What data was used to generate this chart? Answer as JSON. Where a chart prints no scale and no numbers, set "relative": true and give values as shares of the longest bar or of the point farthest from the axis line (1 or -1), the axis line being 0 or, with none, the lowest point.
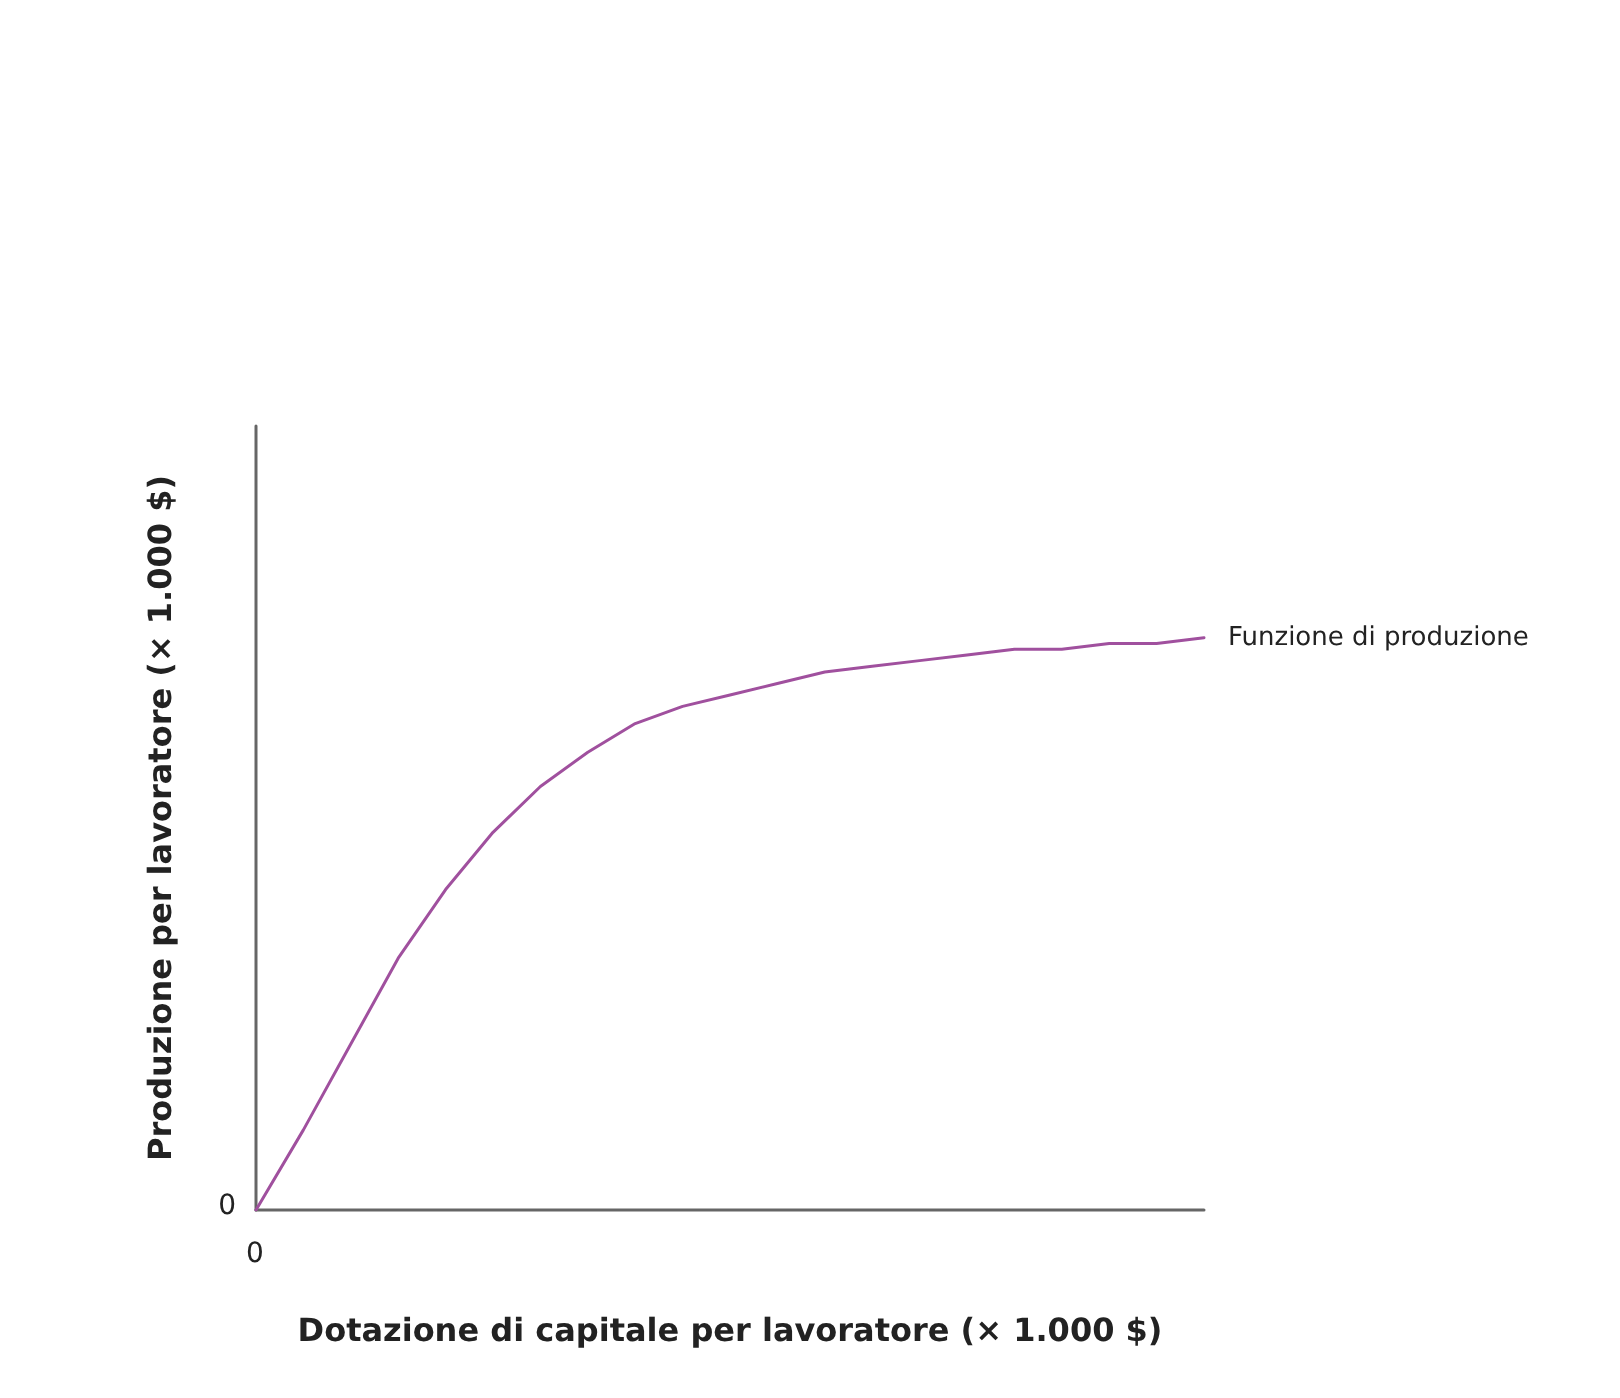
{
  "chart_data": {
    "type": "line",
    "relative": true,
    "xlabel": "Dotazione di capitale per lavoratore (× 1.000 $)",
    "ylabel": "Produzione per lavoratore (× 1.000 $)",
    "categories": [
      null,
      null,
      null,
      null,
      null,
      null,
      null,
      null,
      null,
      null,
      null,
      null,
      null,
      null,
      null,
      null,
      null,
      null,
      null,
      null,
      null
    ],
    "series": [
      {
        "name": "Funzione di produzione",
        "color": "#a0509e",
        "values": [
          0,
          0.14,
          0.29,
          0.44,
          0.56,
          0.66,
          0.74,
          0.8,
          0.85,
          0.88,
          0.9,
          0.92,
          0.94,
          0.95,
          0.96,
          0.97,
          0.98,
          0.98,
          0.99,
          0.99,
          1
        ]
      }
    ],
    "annotations": [
      "0",
      "0"
    ],
    "grid": false,
    "legend": false,
    "marker": "none",
    "line_style": "solid"
  }
}
